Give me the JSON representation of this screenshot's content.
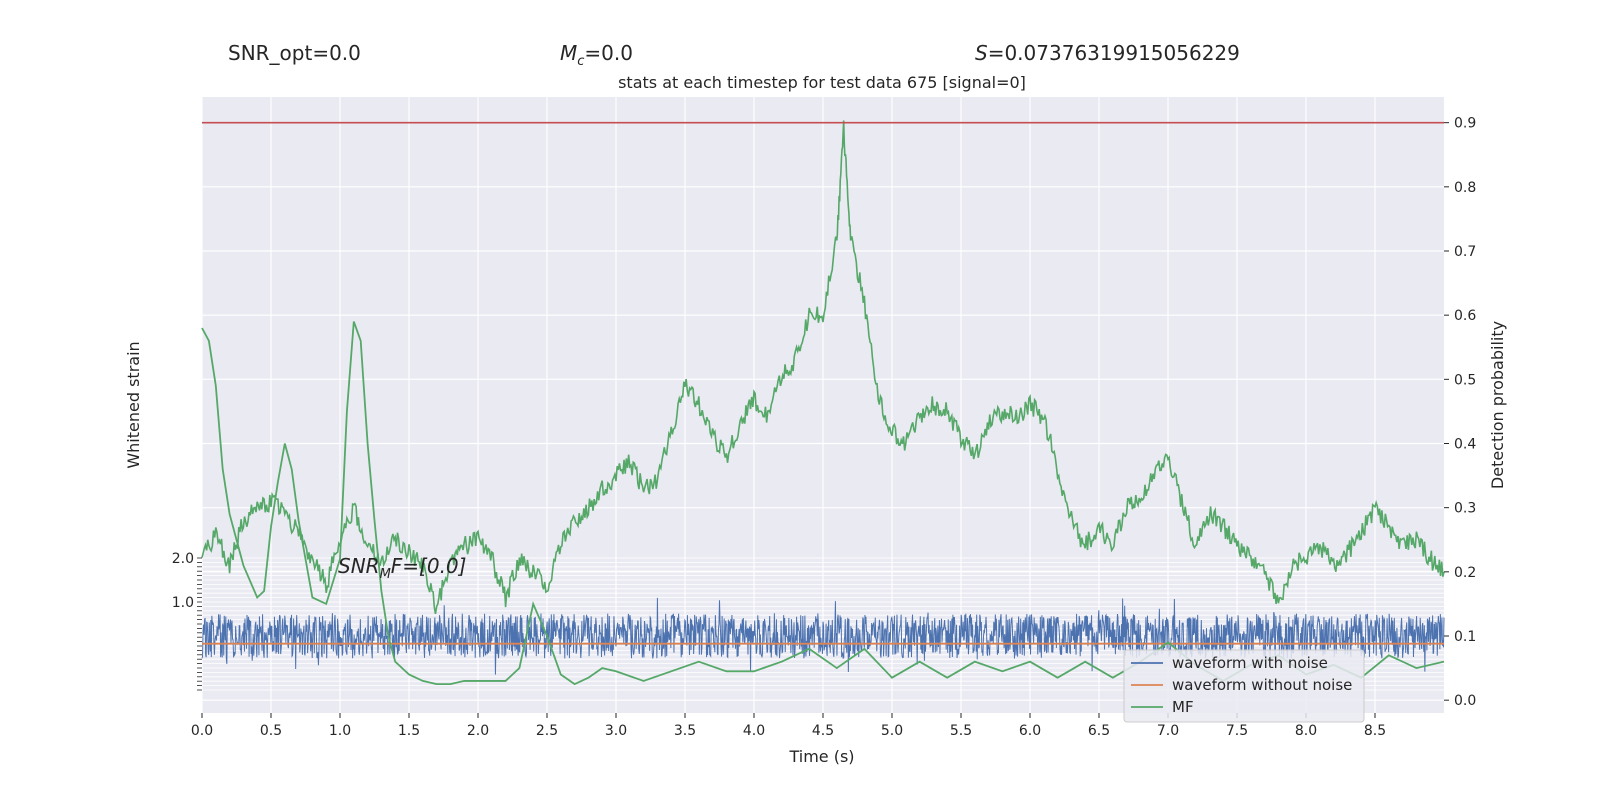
{
  "header": {
    "snr_opt": "SNR_opt=0.0",
    "mc_symbol": "M",
    "mc_sub": "c",
    "mc_value": "=0.0",
    "s_symbol": "S",
    "s_value": "=0.07376319915056229"
  },
  "chart_data": {
    "type": "line",
    "title": "stats at each timestep for test data 675 [signal=0]",
    "xlabel": "Time (s)",
    "ylabel_left": "Whitened strain",
    "ylabel_right": "Detection probability",
    "xlim": [
      0.0,
      9.0
    ],
    "ylim_right": [
      -0.02,
      0.94
    ],
    "strain_ylim": [
      -1.0,
      2.0
    ],
    "x_ticks": [
      "0.0",
      "0.5",
      "1.0",
      "1.5",
      "2.0",
      "2.5",
      "3.0",
      "3.5",
      "4.0",
      "4.5",
      "5.0",
      "5.5",
      "6.0",
      "6.5",
      "7.0",
      "7.5",
      "8.0",
      "8.5"
    ],
    "right_ticks": [
      "0.0",
      "0.1",
      "0.2",
      "0.3",
      "0.4",
      "0.5",
      "0.6",
      "0.7",
      "0.8",
      "0.9"
    ],
    "left_ticks": [
      "2.0",
      "1.0"
    ],
    "threshold": 0.9,
    "annotation_prefix": "SNR",
    "annotation_sub": "M",
    "annotation_suffix": "F=[0.0]",
    "grid": true,
    "legend_position": "lower-right",
    "series": [
      {
        "name": "waveform with noise",
        "color": "#4c72b0",
        "style": "noise band",
        "center": 0.1,
        "envelope": 0.035
      },
      {
        "name": "waveform without noise",
        "color": "#dd8452",
        "style": "flat",
        "value": 0.088
      },
      {
        "name": "MF",
        "color": "#55a868",
        "x": [
          0.0,
          0.05,
          0.1,
          0.15,
          0.2,
          0.3,
          0.4,
          0.45,
          0.5,
          0.55,
          0.6,
          0.65,
          0.7,
          0.8,
          0.9,
          1.0,
          1.05,
          1.1,
          1.15,
          1.2,
          1.25,
          1.3,
          1.35,
          1.4,
          1.5,
          1.6,
          1.7,
          1.8,
          1.9,
          2.0,
          2.1,
          2.2,
          2.3,
          2.4,
          2.5,
          2.6,
          2.7,
          2.8,
          2.9,
          3.0,
          3.2,
          3.4,
          3.6,
          3.8,
          4.0,
          4.2,
          4.4,
          4.6,
          4.8,
          5.0,
          5.2,
          5.4,
          5.6,
          5.8,
          6.0,
          6.2,
          6.4,
          6.6,
          6.8,
          7.0,
          7.2,
          7.4,
          7.6,
          7.8,
          8.0,
          8.2,
          8.4,
          8.6,
          8.8,
          9.0
        ],
        "y": [
          0.58,
          0.56,
          0.49,
          0.36,
          0.29,
          0.21,
          0.16,
          0.17,
          0.27,
          0.34,
          0.4,
          0.36,
          0.28,
          0.16,
          0.15,
          0.22,
          0.45,
          0.59,
          0.56,
          0.4,
          0.28,
          0.17,
          0.1,
          0.06,
          0.04,
          0.03,
          0.025,
          0.025,
          0.03,
          0.03,
          0.03,
          0.03,
          0.05,
          0.15,
          0.1,
          0.04,
          0.025,
          0.035,
          0.05,
          0.045,
          0.03,
          0.045,
          0.06,
          0.045,
          0.045,
          0.06,
          0.08,
          0.05,
          0.08,
          0.035,
          0.06,
          0.035,
          0.06,
          0.045,
          0.06,
          0.035,
          0.06,
          0.035,
          0.06,
          0.09,
          0.055,
          0.03,
          0.055,
          0.07,
          0.04,
          0.055,
          0.035,
          0.07,
          0.05,
          0.06
        ]
      },
      {
        "name": "",
        "color": "#55a868",
        "style": "detection probability",
        "x": [
          0.0,
          0.1,
          0.2,
          0.3,
          0.4,
          0.5,
          0.6,
          0.7,
          0.8,
          0.9,
          1.0,
          1.1,
          1.2,
          1.3,
          1.4,
          1.5,
          1.6,
          1.7,
          1.8,
          1.9,
          2.0,
          2.1,
          2.2,
          2.3,
          2.4,
          2.5,
          2.6,
          2.7,
          2.8,
          2.9,
          3.0,
          3.1,
          3.2,
          3.3,
          3.4,
          3.5,
          3.6,
          3.7,
          3.8,
          3.9,
          4.0,
          4.1,
          4.2,
          4.3,
          4.4,
          4.5,
          4.6,
          4.65,
          4.7,
          4.8,
          4.9,
          5.0,
          5.1,
          5.2,
          5.3,
          5.4,
          5.5,
          5.6,
          5.7,
          5.8,
          5.9,
          6.0,
          6.1,
          6.2,
          6.3,
          6.4,
          6.5,
          6.6,
          6.7,
          6.8,
          6.9,
          7.0,
          7.1,
          7.2,
          7.3,
          7.4,
          7.5,
          7.6,
          7.7,
          7.8,
          7.9,
          8.0,
          8.1,
          8.2,
          8.3,
          8.4,
          8.5,
          8.6,
          8.7,
          8.8,
          8.9,
          9.0
        ],
        "y": [
          0.22,
          0.26,
          0.21,
          0.28,
          0.3,
          0.31,
          0.29,
          0.26,
          0.22,
          0.18,
          0.25,
          0.3,
          0.24,
          0.22,
          0.25,
          0.23,
          0.21,
          0.14,
          0.22,
          0.24,
          0.25,
          0.22,
          0.16,
          0.22,
          0.2,
          0.18,
          0.24,
          0.28,
          0.3,
          0.33,
          0.35,
          0.37,
          0.33,
          0.34,
          0.42,
          0.49,
          0.46,
          0.41,
          0.38,
          0.43,
          0.47,
          0.44,
          0.51,
          0.53,
          0.6,
          0.6,
          0.72,
          0.89,
          0.72,
          0.62,
          0.47,
          0.42,
          0.4,
          0.44,
          0.46,
          0.45,
          0.41,
          0.38,
          0.43,
          0.45,
          0.44,
          0.46,
          0.44,
          0.36,
          0.28,
          0.24,
          0.27,
          0.24,
          0.3,
          0.31,
          0.35,
          0.38,
          0.31,
          0.24,
          0.29,
          0.27,
          0.24,
          0.22,
          0.2,
          0.15,
          0.21,
          0.22,
          0.24,
          0.21,
          0.23,
          0.26,
          0.3,
          0.27,
          0.24,
          0.25,
          0.22,
          0.2
        ]
      }
    ]
  }
}
